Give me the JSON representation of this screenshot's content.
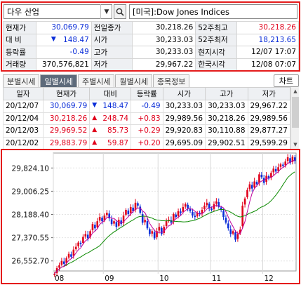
{
  "search": {
    "code": "다우 산업",
    "name": "[미국]:Dow Jones Indices"
  },
  "quote": {
    "rows": [
      [
        {
          "l": "현재가"
        },
        {
          "v": "30,069.79",
          "c": "blue"
        },
        {
          "l": "전일종가"
        },
        {
          "v": "30,218.26"
        },
        {
          "l": "52주최고"
        },
        {
          "v": "30,218.26",
          "c": "red"
        }
      ],
      [
        {
          "l": "대  비"
        },
        {
          "v": "148.47",
          "c": "blue",
          "arrow": "▼"
        },
        {
          "l": "시가"
        },
        {
          "v": "30,233.03"
        },
        {
          "l": "52주최저"
        },
        {
          "v": "18,213.65",
          "c": "blue"
        }
      ],
      [
        {
          "l": "등락률"
        },
        {
          "v": "-0.49",
          "c": "blue"
        },
        {
          "l": "고가"
        },
        {
          "v": "30,233.03"
        },
        {
          "l": "현지시각"
        },
        {
          "v": "12/07 17:07"
        }
      ],
      [
        {
          "l": "거래량"
        },
        {
          "v": "370,576,821"
        },
        {
          "l": "저가"
        },
        {
          "v": "29,967.22"
        },
        {
          "l": "한국시각"
        },
        {
          "v": "12/08 07:07"
        }
      ]
    ]
  },
  "tabs": [
    "분별시세",
    "일별시세",
    "주별시세",
    "월별시세",
    "종목정보"
  ],
  "active_tab": 1,
  "chart_button": "차트",
  "daily": {
    "headers": [
      "일자",
      "현재가",
      "대비",
      "등락률",
      "시가",
      "고가",
      "저가"
    ],
    "rows": [
      {
        "date": "20/12/07",
        "close": "30,069.79",
        "arrow": "▼",
        "chg": "148.47",
        "pct": "-0.49",
        "open": "30,233.03",
        "high": "30,233.03",
        "low": "29,967.22",
        "c": "blue"
      },
      {
        "date": "20/12/04",
        "close": "30,218.26",
        "arrow": "▲",
        "chg": "248.74",
        "pct": "+0.83",
        "open": "29,989.56",
        "high": "30,218.26",
        "low": "29,989.56",
        "c": "red"
      },
      {
        "date": "20/12/03",
        "close": "29,969.52",
        "arrow": "▲",
        "chg": "85.73",
        "pct": "+0.29",
        "open": "29,920.83",
        "high": "30,110.88",
        "low": "29,877.27",
        "c": "red"
      },
      {
        "date": "20/12/02",
        "close": "29,883.79",
        "arrow": "▲",
        "chg": "59.87",
        "pct": "+0.20",
        "open": "29,695.09",
        "high": "29,902.51",
        "low": "29,599.29",
        "c": "red"
      }
    ]
  },
  "colors": {
    "up": "#e0001b",
    "down": "#0a2dd8",
    "ma_short": "#c0009c",
    "ma_long": "#0b8a00"
  },
  "chart_data": {
    "type": "candlestick",
    "x_ticks": [
      "08",
      "09",
      "10",
      "11",
      "12"
    ],
    "y_ticks": [
      29824.1,
      29006.25,
      28188.4,
      27370.55,
      26552.7
    ],
    "y_tick_labels": [
      "29,824.10",
      "29,006.25",
      "28,188.40",
      "27,370.55",
      "26,552.70"
    ],
    "ylim": [
      26200,
      30350
    ],
    "closes": [
      26100,
      26300,
      26400,
      26550,
      26450,
      26650,
      26800,
      26700,
      26950,
      27050,
      27200,
      27150,
      27400,
      27500,
      27350,
      27600,
      27850,
      27700,
      27950,
      28100,
      27950,
      28150,
      28250,
      28050,
      27850,
      27950,
      27750,
      28000,
      27850,
      28150,
      28350,
      28200,
      28450,
      28300,
      28600,
      28500,
      28250,
      27900,
      28000,
      27700,
      27500,
      27600,
      27350,
      27600,
      27750,
      27500,
      27750,
      27950,
      28000,
      27900,
      28200,
      28100,
      28300,
      28250,
      28450,
      28550,
      28400,
      28300,
      28150,
      28100,
      28250,
      28200,
      28350,
      28500,
      28600,
      28400,
      28350,
      28550,
      28650,
      28450,
      28350,
      28100,
      27900,
      27700,
      27500,
      27600,
      27300,
      27500,
      27650,
      28500,
      28750,
      29050,
      29250,
      29100,
      29350,
      29250,
      29600,
      29500,
      29300,
      29550,
      29450,
      29650,
      29800,
      29700,
      29850,
      29950,
      29900,
      30050,
      30200,
      30000,
      30220,
      30070
    ],
    "x_tick_index": [
      0,
      21,
      44,
      66,
      88
    ]
  }
}
